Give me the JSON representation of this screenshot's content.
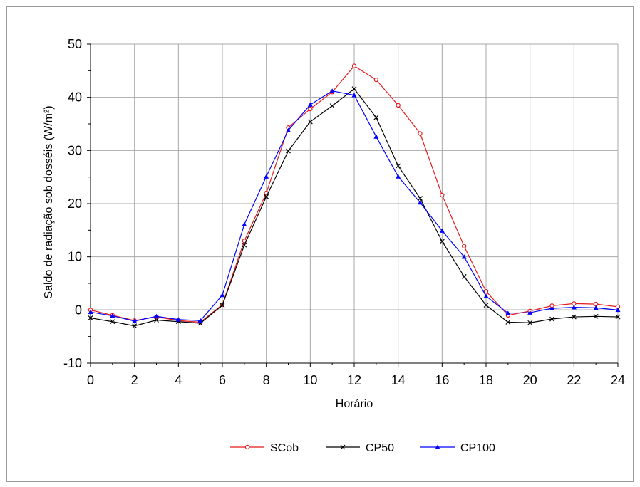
{
  "chart_data": {
    "type": "line",
    "title": "",
    "xlabel": "Horário",
    "ylabel": "Saldo de radiação sob dosséis (W/m²)",
    "xlim": [
      0,
      24
    ],
    "ylim": [
      -10,
      50
    ],
    "xticks": [
      0,
      2,
      4,
      6,
      8,
      10,
      12,
      14,
      16,
      18,
      20,
      22,
      24
    ],
    "yticks": [
      -10,
      0,
      10,
      20,
      30,
      40,
      50
    ],
    "grid": true,
    "legend_position": "bottom",
    "x": [
      0,
      1,
      2,
      3,
      4,
      5,
      6,
      7,
      8,
      9,
      10,
      11,
      12,
      13,
      14,
      15,
      16,
      17,
      18,
      19,
      20,
      21,
      22,
      23,
      24
    ],
    "series": [
      {
        "name": "SCob",
        "color": "#e41a1c",
        "marker": "open-circle",
        "values": [
          0.0,
          -1.0,
          -2.0,
          -1.3,
          -2.0,
          -2.3,
          1.0,
          13.0,
          22.0,
          34.3,
          37.8,
          41.0,
          45.9,
          43.3,
          38.5,
          33.2,
          21.6,
          12.0,
          3.5,
          -1.0,
          -0.2,
          0.8,
          1.2,
          1.1,
          0.6
        ]
      },
      {
        "name": "CP50",
        "color": "#000000",
        "marker": "x",
        "values": [
          -1.5,
          -2.2,
          -3.0,
          -1.9,
          -2.2,
          -2.5,
          0.9,
          12.2,
          21.3,
          29.9,
          35.4,
          38.4,
          41.6,
          36.2,
          27.1,
          21.0,
          12.9,
          6.3,
          0.9,
          -2.3,
          -2.4,
          -1.7,
          -1.3,
          -1.2,
          -1.3
        ]
      },
      {
        "name": "CP100",
        "color": "#0000ff",
        "marker": "filled-triangle",
        "values": [
          -0.4,
          -1.1,
          -2.1,
          -1.2,
          -1.8,
          -2.0,
          2.8,
          16.1,
          25.1,
          33.8,
          38.6,
          41.2,
          40.4,
          32.6,
          25.1,
          20.2,
          14.9,
          10.0,
          2.6,
          -0.6,
          -0.5,
          0.3,
          0.5,
          0.4,
          0.0
        ]
      }
    ]
  }
}
